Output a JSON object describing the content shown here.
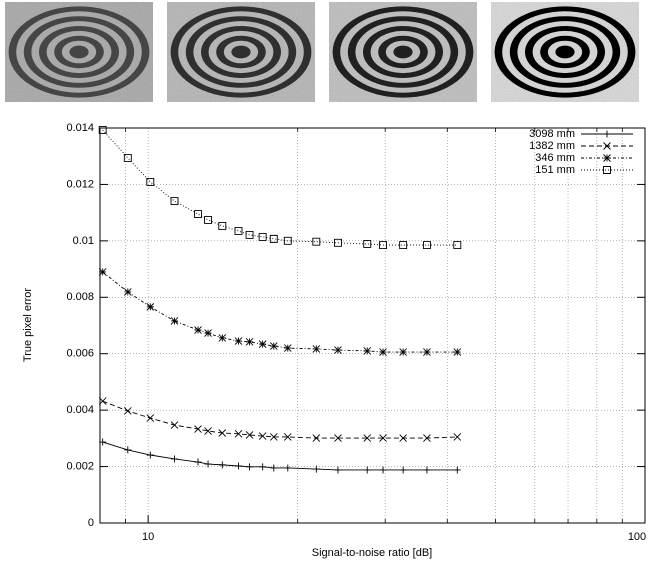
{
  "chart_data": {
    "type": "line",
    "xlabel": "Signal-to-noise ratio [dB]",
    "ylabel": "True pixel error",
    "xscale": "log",
    "xlim": [
      8,
      100
    ],
    "xticks": [
      10,
      100
    ],
    "ylim": [
      0,
      0.014
    ],
    "yticks": [
      0,
      0.002,
      0.004,
      0.006,
      0.008,
      0.01,
      0.012,
      0.014
    ],
    "grid": true,
    "legend": "upper right",
    "x": [
      8.1,
      9.1,
      10.1,
      11.3,
      12.6,
      13.2,
      14.1,
      15.2,
      16,
      17,
      17.9,
      19.1,
      21.8,
      24.1,
      27.6,
      29.7,
      32.6,
      36.4,
      41.9
    ],
    "series": [
      {
        "name": "3098 mm",
        "color": "#000000",
        "marker": "plus",
        "dash": "solid",
        "values": [
          0.00287,
          0.00259,
          0.00241,
          0.00227,
          0.00216,
          0.00209,
          0.00206,
          0.00202,
          0.00199,
          0.00199,
          0.00195,
          0.00195,
          0.00191,
          0.00188,
          0.00188,
          0.00188,
          0.00188,
          0.00188,
          0.00188
        ]
      },
      {
        "name": "1382 mm",
        "color": "#000000",
        "marker": "x",
        "dash": "dashed",
        "values": [
          0.00432,
          0.00397,
          0.00372,
          0.00347,
          0.00333,
          0.00326,
          0.00319,
          0.00316,
          0.00312,
          0.00308,
          0.00305,
          0.00305,
          0.00301,
          0.00301,
          0.00301,
          0.00301,
          0.00301,
          0.00301,
          0.00305
        ]
      },
      {
        "name": "346 mm",
        "color": "#000000",
        "marker": "star",
        "dash": "dashdot",
        "values": [
          0.0089,
          0.00819,
          0.00766,
          0.00716,
          0.00684,
          0.00673,
          0.00656,
          0.00645,
          0.00642,
          0.00634,
          0.00627,
          0.0062,
          0.00617,
          0.00613,
          0.0061,
          0.00606,
          0.00606,
          0.00606,
          0.00606
        ]
      },
      {
        "name": "151 mm",
        "color": "#000000",
        "marker": "square",
        "dash": "dotted",
        "values": [
          0.01393,
          0.01294,
          0.01209,
          0.01141,
          0.01095,
          0.01074,
          0.01053,
          0.01035,
          0.01021,
          0.01014,
          0.01007,
          0.01,
          0.00997,
          0.00993,
          0.00989,
          0.00985,
          0.00985,
          0.00985,
          0.00985
        ]
      }
    ]
  }
}
